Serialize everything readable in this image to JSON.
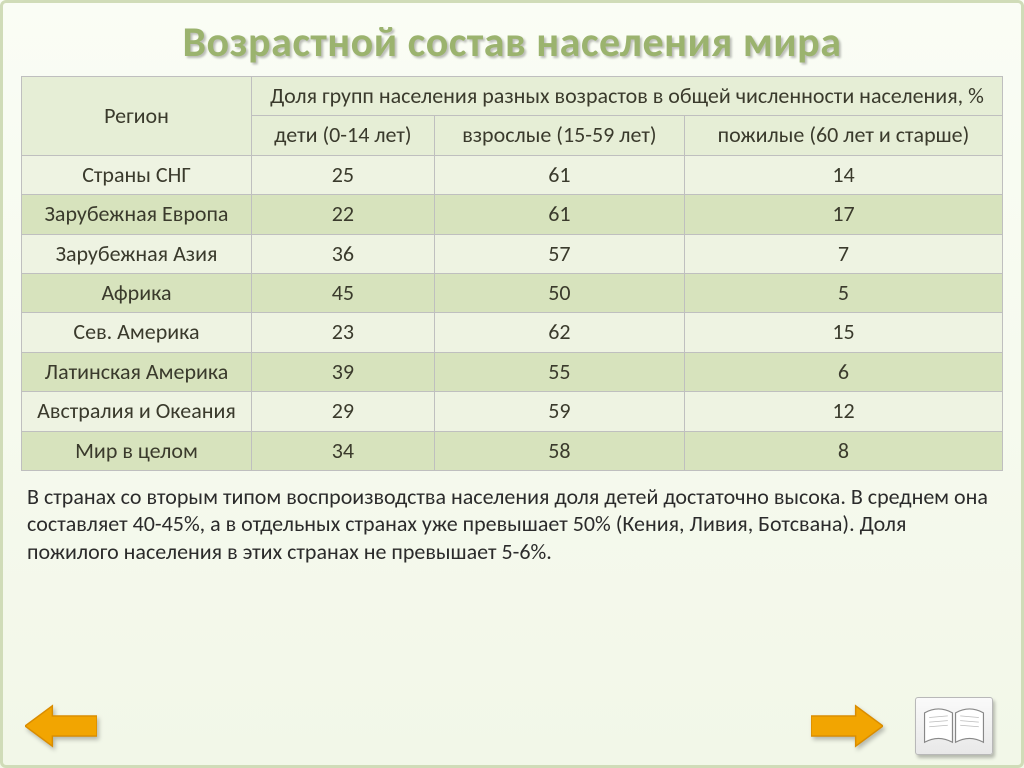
{
  "title": "Возрастной состав населения мира",
  "table": {
    "type": "table",
    "header_bg": "#e6eed6",
    "row_even_bg": "#eef3e2",
    "row_odd_bg": "#d7e3bd",
    "border_color": "#bfbfbf",
    "text_color": "#3a3a2c",
    "font_size": 22,
    "col_region": "Регион",
    "col_group_header": "Доля групп населения разных возрастов в общей численности населения, %",
    "col_children": "дети (0-14 лет)",
    "col_adults": "взрослые (15-59 лет)",
    "col_elderly": "пожилые (60 лет и старше)",
    "rows": [
      {
        "region": "Страны СНГ",
        "children": "25",
        "adults": "61",
        "elderly": "14"
      },
      {
        "region": "Зарубежная Европа",
        "children": "22",
        "adults": "61",
        "elderly": "17"
      },
      {
        "region": "Зарубежная Азия",
        "children": "36",
        "adults": "57",
        "elderly": "7"
      },
      {
        "region": "Африка",
        "children": "45",
        "adults": "50",
        "elderly": "5"
      },
      {
        "region": "Сев. Америка",
        "children": "23",
        "adults": "62",
        "elderly": "15"
      },
      {
        "region": "Латинская Америка",
        "children": "39",
        "adults": "55",
        "elderly": "6"
      },
      {
        "region": "Австралия и Океания",
        "children": "29",
        "adults": "59",
        "elderly": "12"
      },
      {
        "region": "Мир в целом",
        "children": "34",
        "adults": "58",
        "elderly": "8"
      }
    ]
  },
  "caption": "В странах со вторым типом воспроизводства населения доля детей достаточно высока. В среднем она составляет 40-45%, а в отдельных странах уже превышает 50% (Кения, Ливия, Ботсвана). Доля пожилого населения в этих странах не превышает 5-6%.",
  "colors": {
    "title_color": "#9bb36e",
    "page_bg_top": "#fafdf5",
    "page_bg_bottom": "#f2f7e8",
    "page_border": "#d0dcb8",
    "arrow_fill": "#f2a501",
    "arrow_stroke": "#d98c00"
  }
}
